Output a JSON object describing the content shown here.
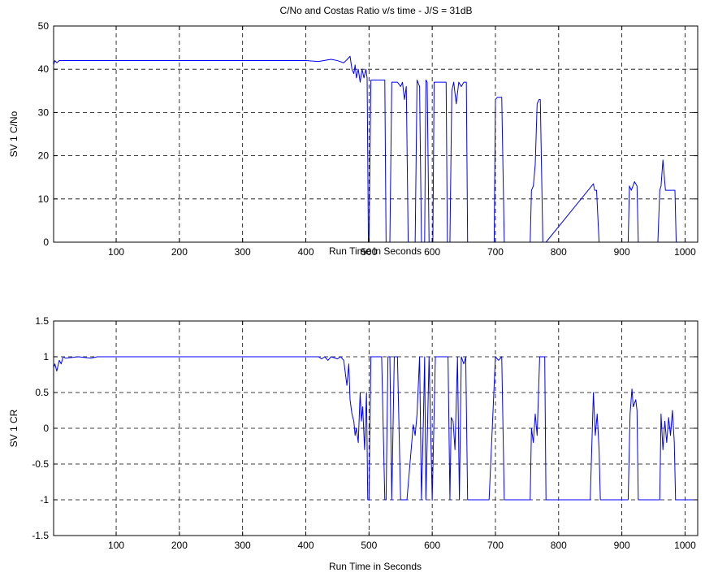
{
  "figure": {
    "title": "C/No and Costas Ratio v/s time - J/S = 31dB"
  },
  "colors": {
    "background": "#ffffff",
    "axes": "#000000",
    "grid": "#000000",
    "series": "#0000ff"
  },
  "chart_data": [
    {
      "type": "line",
      "title": "C/No and Costas Ratio v/s time - J/S = 31dB",
      "xlabel": "Run Time in Seconds",
      "ylabel": "SV 1 C/No",
      "xlim": [
        1,
        1020
      ],
      "ylim": [
        0,
        50
      ],
      "xticks": [
        100,
        200,
        300,
        400,
        500,
        600,
        700,
        800,
        900,
        1000
      ],
      "yticks": [
        0,
        10,
        20,
        30,
        40,
        50
      ],
      "xtick_labels": [
        "100",
        "200",
        "300",
        "400",
        "500",
        "600",
        "700",
        "800",
        "900",
        "1000"
      ],
      "ytick_labels": [
        "0",
        "10",
        "20",
        "30",
        "40",
        "50"
      ],
      "grid": true,
      "grid_style": "dashed",
      "series": [
        {
          "x": [
            1,
            3,
            6,
            10,
            15,
            20,
            30,
            60,
            100,
            150,
            200,
            250,
            300,
            350,
            380,
            400,
            420,
            440,
            450,
            460,
            465,
            470,
            473,
            476,
            478,
            480,
            483,
            486,
            489,
            492,
            495,
            497,
            498,
            499,
            500,
            503,
            525,
            527,
            530,
            533,
            536,
            545,
            550,
            553,
            556,
            559,
            562,
            566,
            568,
            570,
            573,
            576,
            580,
            583,
            586,
            588,
            590,
            592,
            595,
            598,
            601,
            603,
            606,
            622,
            624,
            626,
            628,
            631,
            634,
            638,
            642,
            646,
            650,
            654,
            656,
            659,
            698,
            700,
            703,
            710,
            714,
            717,
            720,
            755,
            757,
            760,
            763,
            766,
            769,
            771,
            775,
            778,
            780,
            855,
            857,
            860,
            864,
            866,
            910,
            912,
            915,
            920,
            924,
            926,
            957,
            960,
            962,
            965,
            969,
            975,
            980,
            984,
            986,
            1000,
            1020
          ],
          "y": [
            41,
            42,
            41.5,
            42,
            42,
            42,
            42,
            42,
            42,
            42,
            42,
            42,
            42,
            42,
            42,
            42,
            41.8,
            42.3,
            42,
            41.5,
            42.2,
            43,
            40,
            39,
            41,
            38,
            40,
            37,
            40,
            38,
            40,
            38,
            20,
            0,
            0,
            37.5,
            37.5,
            0,
            0,
            0,
            37,
            37,
            36,
            37,
            33,
            36,
            0,
            0,
            0,
            0,
            0,
            37.5,
            36,
            0,
            0,
            0,
            37.5,
            37,
            0,
            0,
            0,
            37,
            37,
            37,
            0,
            0,
            0,
            35,
            37,
            32,
            37,
            36,
            37,
            37,
            0,
            0,
            0,
            33,
            33.5,
            33.5,
            0,
            0,
            0,
            0,
            12,
            13,
            18,
            32,
            33,
            33,
            0,
            0,
            0,
            13.5,
            12,
            12,
            0,
            0,
            0,
            13,
            12,
            14,
            13,
            0,
            0,
            12,
            13,
            19,
            12,
            12,
            12,
            12,
            0,
            0,
            0
          ]
        }
      ]
    },
    {
      "type": "line",
      "title": "",
      "xlabel": "Run Time in Seconds",
      "ylabel": "SV 1 CR",
      "xlim": [
        1,
        1020
      ],
      "ylim": [
        -1.5,
        1.5
      ],
      "xticks": [
        100,
        200,
        300,
        400,
        500,
        600,
        700,
        800,
        900,
        1000
      ],
      "yticks": [
        -1.5,
        -1,
        -0.5,
        0,
        0.5,
        1,
        1.5
      ],
      "xtick_labels": [
        "100",
        "200",
        "300",
        "400",
        "500",
        "600",
        "700",
        "800",
        "900",
        "1000"
      ],
      "ytick_labels": [
        "-1.5",
        "-1",
        "-0.5",
        "0",
        "0.5",
        "1",
        "1.5"
      ],
      "grid": true,
      "grid_style": "dashed",
      "series": [
        {
          "x": [
            1,
            3,
            6,
            10,
            13,
            16,
            20,
            40,
            60,
            70,
            100,
            200,
            300,
            400,
            420,
            425,
            430,
            435,
            440,
            450,
            455,
            460,
            465,
            468,
            470,
            473,
            476,
            478,
            480,
            483,
            486,
            488,
            490,
            493,
            496,
            498,
            500,
            503,
            520,
            525,
            527,
            530,
            533,
            536,
            540,
            545,
            550,
            560,
            570,
            573,
            576,
            580,
            583,
            586,
            588,
            590,
            595,
            600,
            605,
            625,
            628,
            630,
            633,
            636,
            640,
            643,
            646,
            650,
            653,
            656,
            660,
            690,
            700,
            705,
            710,
            714,
            720,
            755,
            757,
            760,
            763,
            766,
            770,
            775,
            778,
            780,
            850,
            855,
            858,
            861,
            864,
            866,
            900,
            910,
            913,
            916,
            918,
            922,
            924,
            926,
            955,
            960,
            962,
            965,
            968,
            971,
            974,
            977,
            980,
            983,
            985,
            1000,
            1020
          ],
          "y": [
            0.85,
            0.9,
            0.8,
            0.95,
            0.9,
            1,
            0.98,
            1,
            0.98,
            1,
            1,
            1,
            1,
            1,
            1,
            0.97,
            1,
            0.95,
            1,
            0.97,
            1,
            0.95,
            0.6,
            0.9,
            0.4,
            0.2,
            0.1,
            -0.1,
            0.0,
            -0.2,
            0.5,
            0.1,
            0.3,
            -0.3,
            0.5,
            -1,
            -1,
            1,
            1,
            -1,
            -1,
            1,
            1,
            -1,
            1,
            1,
            -1,
            -1,
            0.05,
            -0.1,
            0.2,
            1,
            -1,
            0.1,
            1,
            -1,
            1,
            -1,
            1,
            1,
            -1,
            0.15,
            0.1,
            -0.3,
            1,
            -1,
            1,
            0.9,
            1,
            -1,
            -1,
            -1,
            1,
            0.95,
            1,
            -1,
            -1,
            -1,
            0,
            -0.2,
            0.2,
            -0.1,
            1,
            1,
            1,
            -1,
            -1,
            0.5,
            -0.1,
            0.2,
            -0.3,
            -1,
            -1,
            -1,
            0.2,
            0.55,
            0.3,
            0.4,
            0.25,
            -1,
            -1,
            -1,
            0.2,
            -0.3,
            0.1,
            -0.2,
            0.15,
            -0.1,
            0.25,
            -0.2,
            -1,
            -1,
            -1
          ]
        }
      ]
    }
  ]
}
